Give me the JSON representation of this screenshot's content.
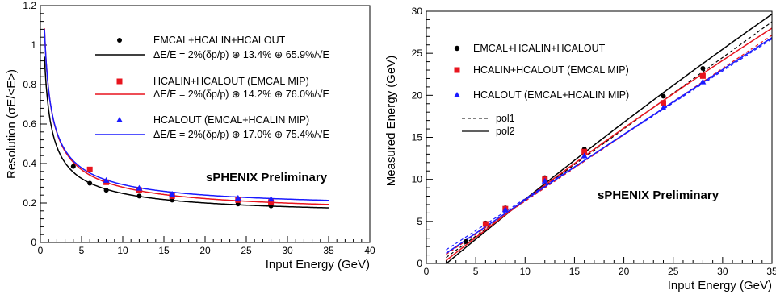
{
  "chart_data": [
    {
      "type": "scatter",
      "xlabel": "Input Energy (GeV)",
      "ylabel": "Resolution (σE/<E>)",
      "xlim": [
        0,
        40
      ],
      "ylim": [
        0,
        1.2
      ],
      "x_ticks": [
        "0",
        "5",
        "10",
        "15",
        "20",
        "25",
        "30",
        "35",
        "40"
      ],
      "y_ticks": [
        "0",
        "0.2",
        "0.4",
        "0.6",
        "0.8",
        "1",
        "1.2"
      ],
      "annotation": "sPHENIX Preliminary",
      "legend_position": "top-right",
      "series": [
        {
          "name": "EMCAL+HCALIN+HCALOUT",
          "fit_label": "ΔE/E = 2%(δp/p) ⊕ 13.4% ⊕ 65.9%/√E",
          "color": "#000000",
          "marker": "circle",
          "fit_params": [
            0.02,
            0.134,
            0.659
          ],
          "x": [
            4,
            6,
            8,
            12,
            16,
            24,
            28
          ],
          "y": [
            0.385,
            0.3,
            0.265,
            0.235,
            0.215,
            0.195,
            0.185
          ]
        },
        {
          "name": "HCALIN+HCALOUT (EMCAL MIP)",
          "fit_label": "ΔE/E = 2%(δp/p) ⊕ 14.2% ⊕ 76.0%/√E",
          "color": "#e8141e",
          "marker": "square",
          "fit_params": [
            0.02,
            0.142,
            0.76
          ],
          "x": [
            6,
            8,
            12,
            16,
            24,
            28
          ],
          "y": [
            0.37,
            0.305,
            0.265,
            0.235,
            0.215,
            0.205
          ]
        },
        {
          "name": "HCALOUT (EMCAL+HCALIN MIP)",
          "fit_label": "ΔE/E = 2%(δp/p) ⊕ 17.0% ⊕ 75.4%/√E",
          "color": "#1a1aff",
          "marker": "triangle",
          "fit_params": [
            0.02,
            0.17,
            0.754
          ],
          "x": [
            8,
            12,
            16,
            24,
            28
          ],
          "y": [
            0.315,
            0.275,
            0.245,
            0.225,
            0.22
          ]
        }
      ]
    },
    {
      "type": "scatter",
      "xlabel": "Input Energy (GeV)",
      "ylabel": "Measured Energy (GeV)",
      "xlim": [
        0,
        35
      ],
      "ylim": [
        0,
        30
      ],
      "x_ticks": [
        "0",
        "5",
        "10",
        "15",
        "20",
        "25",
        "30",
        "35"
      ],
      "y_ticks": [
        "0",
        "5",
        "10",
        "15",
        "20",
        "25",
        "30"
      ],
      "annotation": "sPHENIX Preliminary",
      "legend_position": "top-left",
      "fit_legend": [
        {
          "label": "pol1",
          "style": "dashed"
        },
        {
          "label": "pol2",
          "style": "solid"
        }
      ],
      "series": [
        {
          "name": "EMCAL+HCALIN+HCALOUT",
          "color": "#000000",
          "marker": "circle",
          "x": [
            4,
            6,
            8,
            12,
            16,
            24,
            28
          ],
          "y": [
            2.6,
            4.8,
            6.6,
            10.2,
            13.6,
            19.9,
            23.2
          ],
          "pol1": [
            -1.0,
            0.85
          ],
          "pol2": [
            -2.0,
            0.985,
            -0.0023
          ]
        },
        {
          "name": "HCALIN+HCALOUT (EMCAL MIP)",
          "color": "#e8141e",
          "marker": "square",
          "x": [
            6,
            8,
            12,
            16,
            24,
            28
          ],
          "y": [
            4.7,
            6.5,
            10.0,
            13.3,
            19.1,
            22.3
          ],
          "pol1": [
            -0.5,
            0.79
          ],
          "pol2": [
            -1.5,
            0.93,
            -0.0025
          ]
        },
        {
          "name": "HCALOUT (EMCAL+HCALIN MIP)",
          "color": "#1a1aff",
          "marker": "triangle",
          "x": [
            8,
            12,
            16,
            24,
            28
          ],
          "y": [
            6.4,
            9.8,
            12.8,
            18.5,
            21.6
          ],
          "pol1": [
            0.1,
            0.76
          ],
          "pol2": [
            -0.4,
            0.8,
            -0.0006
          ]
        }
      ]
    }
  ]
}
